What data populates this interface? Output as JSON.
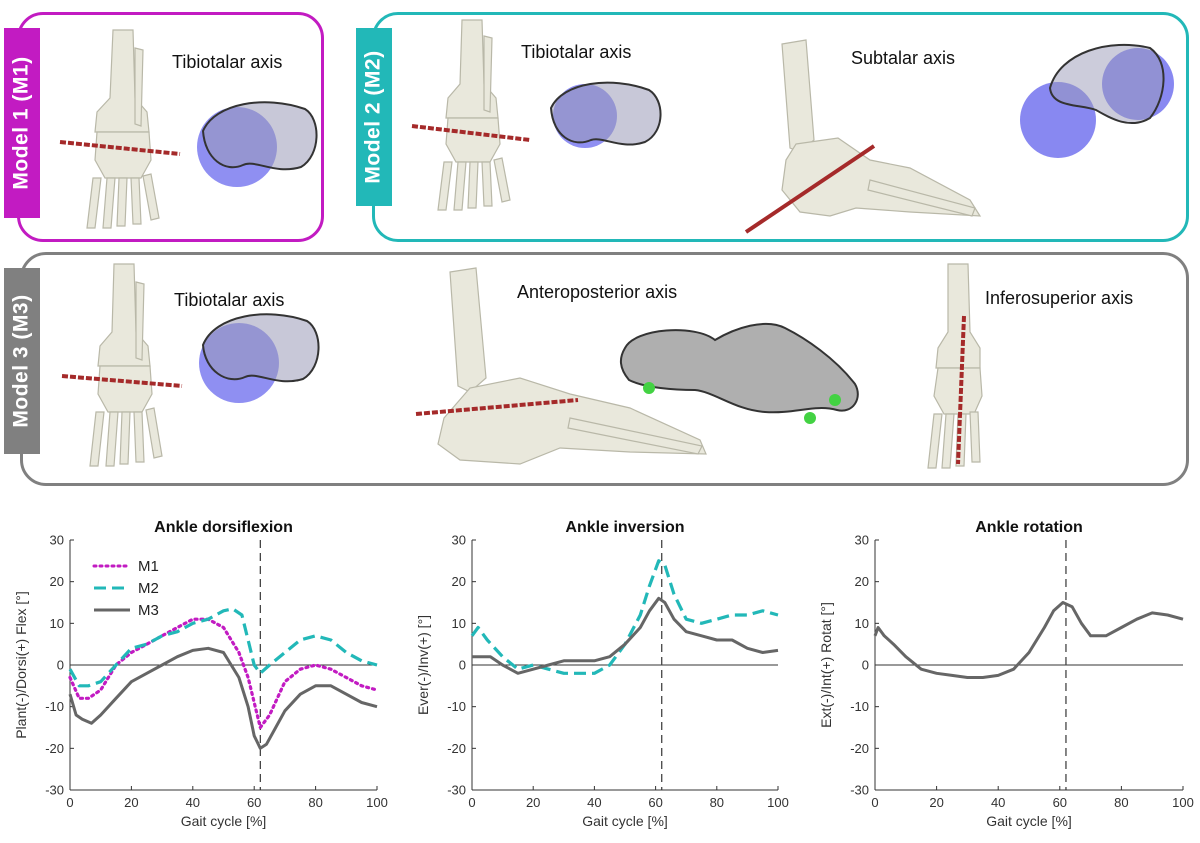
{
  "colors": {
    "m1": "#c21bc2",
    "m2": "#22b8b8",
    "m3": "#666666",
    "bone": "#e9e8dc",
    "axis": "#a52a2a",
    "sphere": "#7b7bf0",
    "marker": "#43d243"
  },
  "panels": {
    "model1": {
      "tag": "Model 1 (M1)",
      "axis_labels": [
        "Tibiotalar axis"
      ]
    },
    "model2": {
      "tag": "Model 2 (M2)",
      "axis_labels": [
        "Tibiotalar axis",
        "Subtalar axis"
      ]
    },
    "model3": {
      "tag": "Model 3 (M3)",
      "axis_labels": [
        "Tibiotalar axis",
        "Anteroposterior axis",
        "Inferosuperior axis"
      ]
    }
  },
  "chart_data": [
    {
      "type": "line",
      "title": "Ankle dorsiflexion",
      "xlabel": "Gait cycle [%]",
      "ylabel": "Plant(-)/Dorsi(+) Flex [°]",
      "xlim": [
        0,
        100
      ],
      "ylim": [
        -30,
        30
      ],
      "xticks": [
        0,
        20,
        40,
        60,
        80,
        100
      ],
      "yticks": [
        -30,
        -20,
        -10,
        0,
        10,
        20,
        30
      ],
      "vline": 62,
      "legend": [
        "M1",
        "M2",
        "M3"
      ],
      "legend_position": "top-left",
      "series": [
        {
          "name": "M1",
          "style": "dotted",
          "color": "#c21bc2",
          "x": [
            0,
            3,
            6,
            10,
            15,
            20,
            25,
            30,
            35,
            40,
            45,
            50,
            55,
            58,
            60,
            62,
            65,
            70,
            75,
            80,
            85,
            90,
            95,
            100
          ],
          "y": [
            -3,
            -8,
            -8,
            -6,
            0,
            3,
            5,
            7,
            9,
            11,
            11,
            9,
            3,
            -3,
            -9,
            -15,
            -12,
            -4,
            -1,
            0,
            -1,
            -3,
            -5,
            -6
          ]
        },
        {
          "name": "M2",
          "style": "dashed",
          "color": "#22b8b8",
          "x": [
            0,
            3,
            6,
            10,
            15,
            20,
            25,
            30,
            35,
            40,
            45,
            50,
            53,
            56,
            58,
            60,
            62,
            65,
            70,
            75,
            80,
            85,
            90,
            95,
            100
          ],
          "y": [
            -1,
            -5,
            -5,
            -4,
            0,
            4,
            5,
            7,
            8,
            10,
            11,
            13,
            13.5,
            12,
            6,
            0,
            -2,
            0,
            3,
            6,
            7,
            6,
            3,
            1,
            0
          ]
        },
        {
          "name": "M3",
          "style": "solid",
          "color": "#666666",
          "x": [
            0,
            2,
            4,
            7,
            10,
            15,
            20,
            25,
            30,
            35,
            40,
            45,
            50,
            55,
            58,
            60,
            62,
            64,
            67,
            70,
            75,
            80,
            85,
            90,
            95,
            100
          ],
          "y": [
            -7,
            -12,
            -13,
            -14,
            -12,
            -8,
            -4,
            -2,
            0,
            2,
            3.5,
            4,
            3,
            -3,
            -10,
            -17,
            -20,
            -19,
            -15,
            -11,
            -7,
            -5,
            -5,
            -7,
            -9,
            -10
          ]
        }
      ]
    },
    {
      "type": "line",
      "title": "Ankle inversion",
      "xlabel": "Gait cycle [%]",
      "ylabel": "Ever(-)/Inv(+) [°]",
      "xlim": [
        0,
        100
      ],
      "ylim": [
        -30,
        30
      ],
      "xticks": [
        0,
        20,
        40,
        60,
        80,
        100
      ],
      "yticks": [
        -30,
        -20,
        -10,
        0,
        10,
        20,
        30
      ],
      "vline": 62,
      "series": [
        {
          "name": "M2",
          "style": "dashed",
          "color": "#22b8b8",
          "x": [
            0,
            2,
            5,
            10,
            15,
            20,
            25,
            30,
            35,
            40,
            45,
            50,
            55,
            58,
            61,
            63,
            66,
            70,
            75,
            80,
            85,
            90,
            95,
            100
          ],
          "y": [
            7,
            9,
            6,
            2,
            -1,
            0,
            -1,
            -2,
            -2,
            -2,
            0,
            5,
            12,
            19,
            25,
            24,
            17,
            11,
            10,
            11,
            12,
            12,
            13,
            12
          ]
        },
        {
          "name": "M3",
          "style": "solid",
          "color": "#666666",
          "x": [
            0,
            3,
            6,
            10,
            15,
            20,
            25,
            30,
            35,
            40,
            45,
            50,
            55,
            58,
            61,
            63,
            66,
            70,
            75,
            80,
            85,
            90,
            95,
            100
          ],
          "y": [
            2,
            2,
            2,
            0,
            -2,
            -1,
            0,
            1,
            1,
            1,
            2,
            5,
            9,
            13,
            16,
            15,
            11,
            8,
            7,
            6,
            6,
            4,
            3,
            3.5
          ]
        }
      ]
    },
    {
      "type": "line",
      "title": "Ankle rotation",
      "xlabel": "Gait cycle [%]",
      "ylabel": "Ext(-)/Int(+) Rotat [°]",
      "xlim": [
        0,
        100
      ],
      "ylim": [
        -30,
        30
      ],
      "xticks": [
        0,
        20,
        40,
        60,
        80,
        100
      ],
      "yticks": [
        -30,
        -20,
        -10,
        0,
        10,
        20,
        30
      ],
      "vline": 62,
      "series": [
        {
          "name": "M3",
          "style": "solid",
          "color": "#666666",
          "x": [
            0,
            1,
            3,
            6,
            10,
            15,
            20,
            25,
            30,
            35,
            40,
            45,
            50,
            55,
            58,
            61,
            64,
            67,
            70,
            75,
            80,
            85,
            90,
            95,
            100
          ],
          "y": [
            7,
            9,
            7,
            5,
            2,
            -1,
            -2,
            -2.5,
            -3,
            -3,
            -2.5,
            -1,
            3,
            9,
            13,
            15,
            14,
            10,
            7,
            7,
            9,
            11,
            12.5,
            12,
            11
          ]
        }
      ]
    }
  ]
}
